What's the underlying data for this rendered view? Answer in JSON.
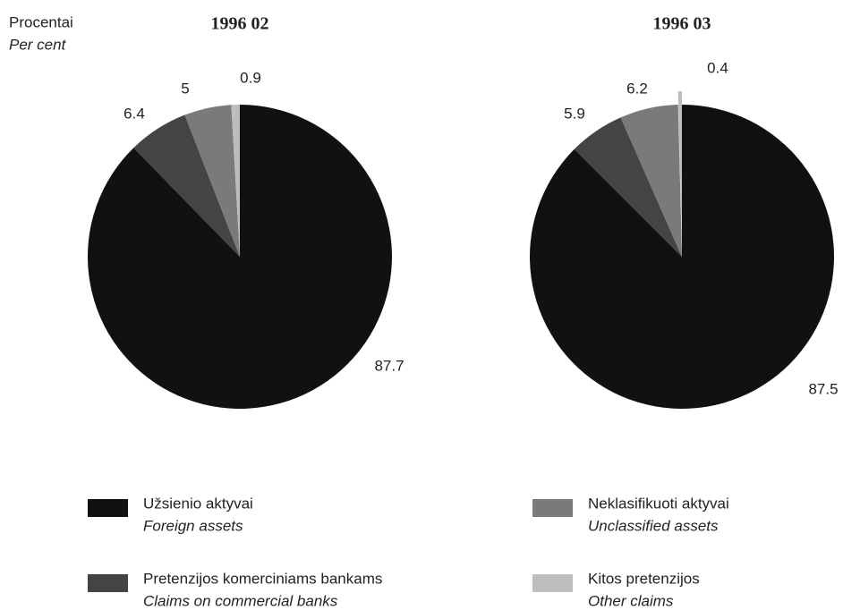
{
  "y_label": "Procentai",
  "y_label_en": "Per cent",
  "legend": [
    {
      "name": "Užsienio aktyvai",
      "name_en": "Foreign assets",
      "color": "#111111"
    },
    {
      "name": "Pretenzijos komerciniams bankams",
      "name_en": "Claims on commercial banks",
      "color": "#444444"
    },
    {
      "name": "Neklasifikuoti aktyvai",
      "name_en": "Unclassified assets",
      "color": "#7a7a7a"
    },
    {
      "name": "Kitos pretenzijos",
      "name_en": "Other claims",
      "color": "#bdbdbd"
    }
  ],
  "chart_data": [
    {
      "type": "pie",
      "title": "1996 02",
      "values": [
        87.7,
        6.4,
        5.0,
        0.9
      ]
    },
    {
      "type": "pie",
      "title": "1996 03",
      "values": [
        87.5,
        5.9,
        6.2,
        0.4
      ]
    }
  ]
}
